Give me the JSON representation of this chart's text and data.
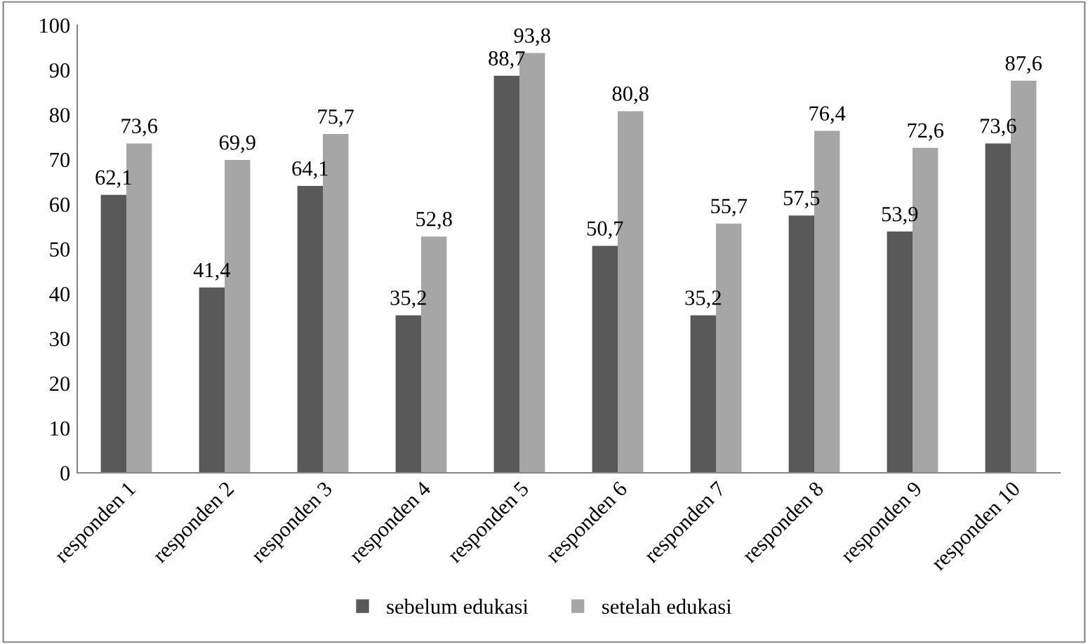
{
  "chart_data": {
    "type": "bar",
    "categories": [
      "responden 1",
      "responden 2",
      "responden 3",
      "responden 4",
      "responden 5",
      "responden 6",
      "responden 7",
      "responden 8",
      "responden 9",
      "responden 10"
    ],
    "series": [
      {
        "name": "sebelum edukasi",
        "color": "#595959",
        "values": [
          62.1,
          41.4,
          64.1,
          35.2,
          88.7,
          50.7,
          35.2,
          57.5,
          53.9,
          73.6
        ],
        "value_labels": [
          "62,1",
          "41,4",
          "64,1",
          "35,2",
          "88,7",
          "50,7",
          "35,2",
          "57,5",
          "53,9",
          "73,6"
        ]
      },
      {
        "name": "setelah edukasi",
        "color": "#a6a6a6",
        "values": [
          73.6,
          69.9,
          75.7,
          52.8,
          93.8,
          80.8,
          55.7,
          76.4,
          72.6,
          87.6
        ],
        "value_labels": [
          "73,6",
          "69,9",
          "75,7",
          "52,8",
          "93,8",
          "80,8",
          "55,7",
          "76,4",
          "72,6",
          "87,6"
        ]
      }
    ],
    "ylim": [
      0,
      100
    ],
    "yticks": [
      0,
      10,
      20,
      30,
      40,
      50,
      60,
      70,
      80,
      90,
      100
    ],
    "grid": false,
    "legend": "bottom"
  }
}
